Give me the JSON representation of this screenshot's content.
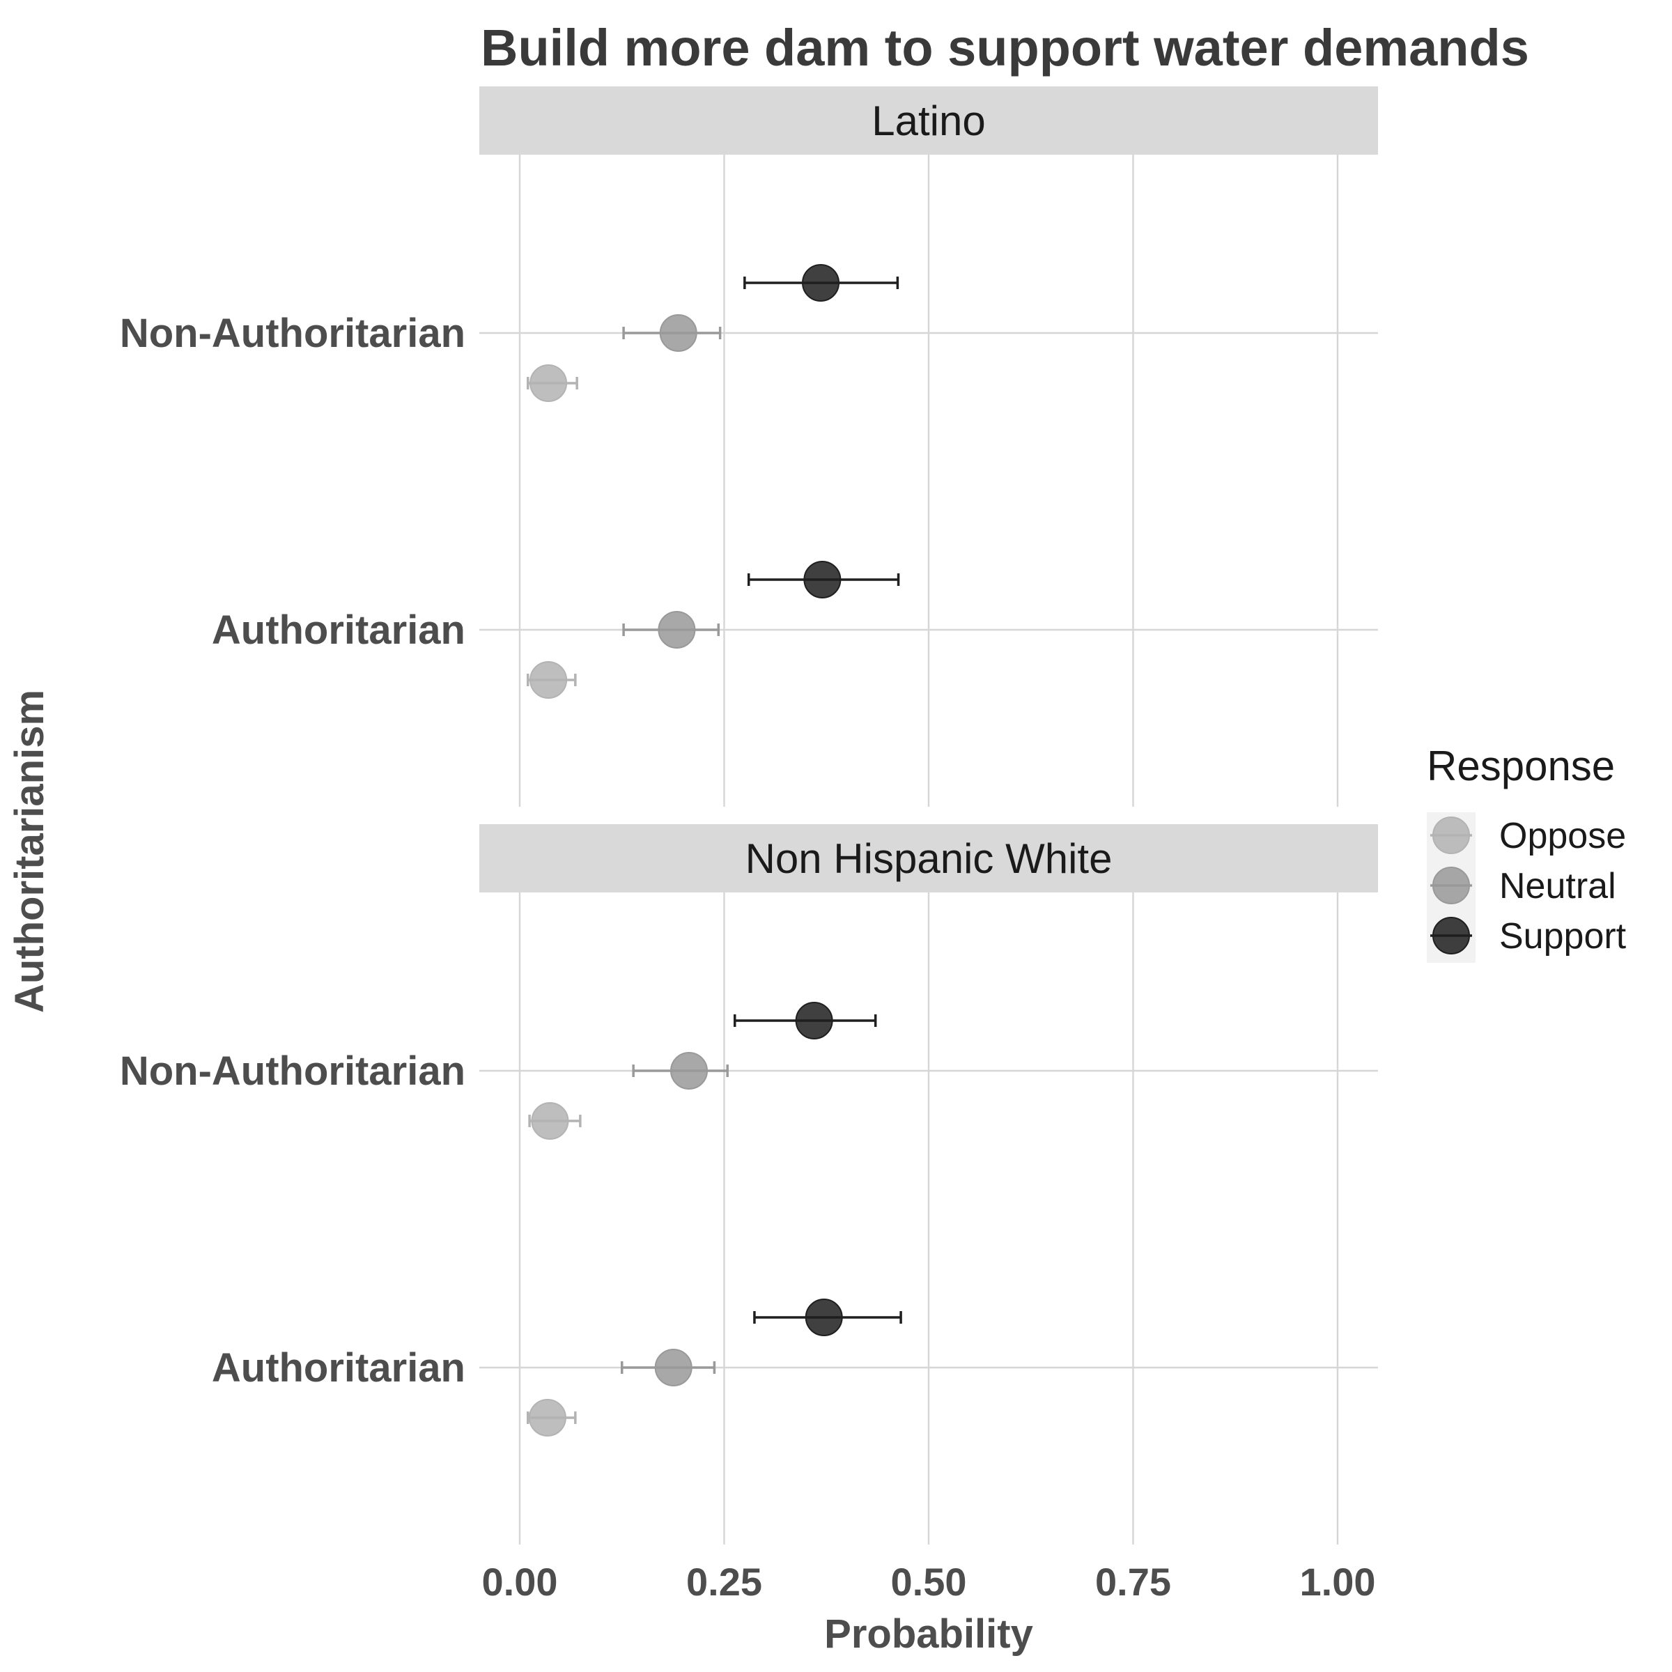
{
  "chart_data": {
    "type": "scatter",
    "title": "Build more dam to support water demands",
    "xlabel": "Probability",
    "ylabel": "Authoritarianism",
    "xlim": [
      -0.05,
      1.05
    ],
    "x_ticks": [
      "0.00",
      "0.25",
      "0.50",
      "0.75",
      "1.00"
    ],
    "grid": true,
    "legend": {
      "title": "Response",
      "placement": "right",
      "items": [
        "Oppose",
        "Neutral",
        "Support"
      ]
    },
    "colors": {
      "Oppose": "#b3b3b3",
      "Neutral": "#999999",
      "Support": "#1f1f1f"
    },
    "panels": [
      {
        "label": "Latino",
        "categories": [
          "Non-Authoritarian",
          "Authoritarian"
        ],
        "series": [
          {
            "name": "Support",
            "points": [
              {
                "category": "Non-Authoritarian",
                "x": 0.368,
                "low": 0.275,
                "high": 0.462
              },
              {
                "category": "Authoritarian",
                "x": 0.37,
                "low": 0.28,
                "high": 0.463
              }
            ]
          },
          {
            "name": "Neutral",
            "points": [
              {
                "category": "Non-Authoritarian",
                "x": 0.194,
                "low": 0.127,
                "high": 0.245
              },
              {
                "category": "Authoritarian",
                "x": 0.192,
                "low": 0.127,
                "high": 0.243
              }
            ]
          },
          {
            "name": "Oppose",
            "points": [
              {
                "category": "Non-Authoritarian",
                "x": 0.035,
                "low": 0.01,
                "high": 0.07
              },
              {
                "category": "Authoritarian",
                "x": 0.035,
                "low": 0.01,
                "high": 0.068
              }
            ]
          }
        ]
      },
      {
        "label": "Non Hispanic White",
        "categories": [
          "Non-Authoritarian",
          "Authoritarian"
        ],
        "series": [
          {
            "name": "Support",
            "points": [
              {
                "category": "Non-Authoritarian",
                "x": 0.36,
                "low": 0.263,
                "high": 0.435
              },
              {
                "category": "Authoritarian",
                "x": 0.372,
                "low": 0.287,
                "high": 0.466
              }
            ]
          },
          {
            "name": "Neutral",
            "points": [
              {
                "category": "Non-Authoritarian",
                "x": 0.207,
                "low": 0.139,
                "high": 0.254
              },
              {
                "category": "Authoritarian",
                "x": 0.188,
                "low": 0.125,
                "high": 0.238
              }
            ]
          },
          {
            "name": "Oppose",
            "points": [
              {
                "category": "Non-Authoritarian",
                "x": 0.037,
                "low": 0.012,
                "high": 0.074
              },
              {
                "category": "Authoritarian",
                "x": 0.034,
                "low": 0.01,
                "high": 0.068
              }
            ]
          }
        ]
      }
    ]
  }
}
